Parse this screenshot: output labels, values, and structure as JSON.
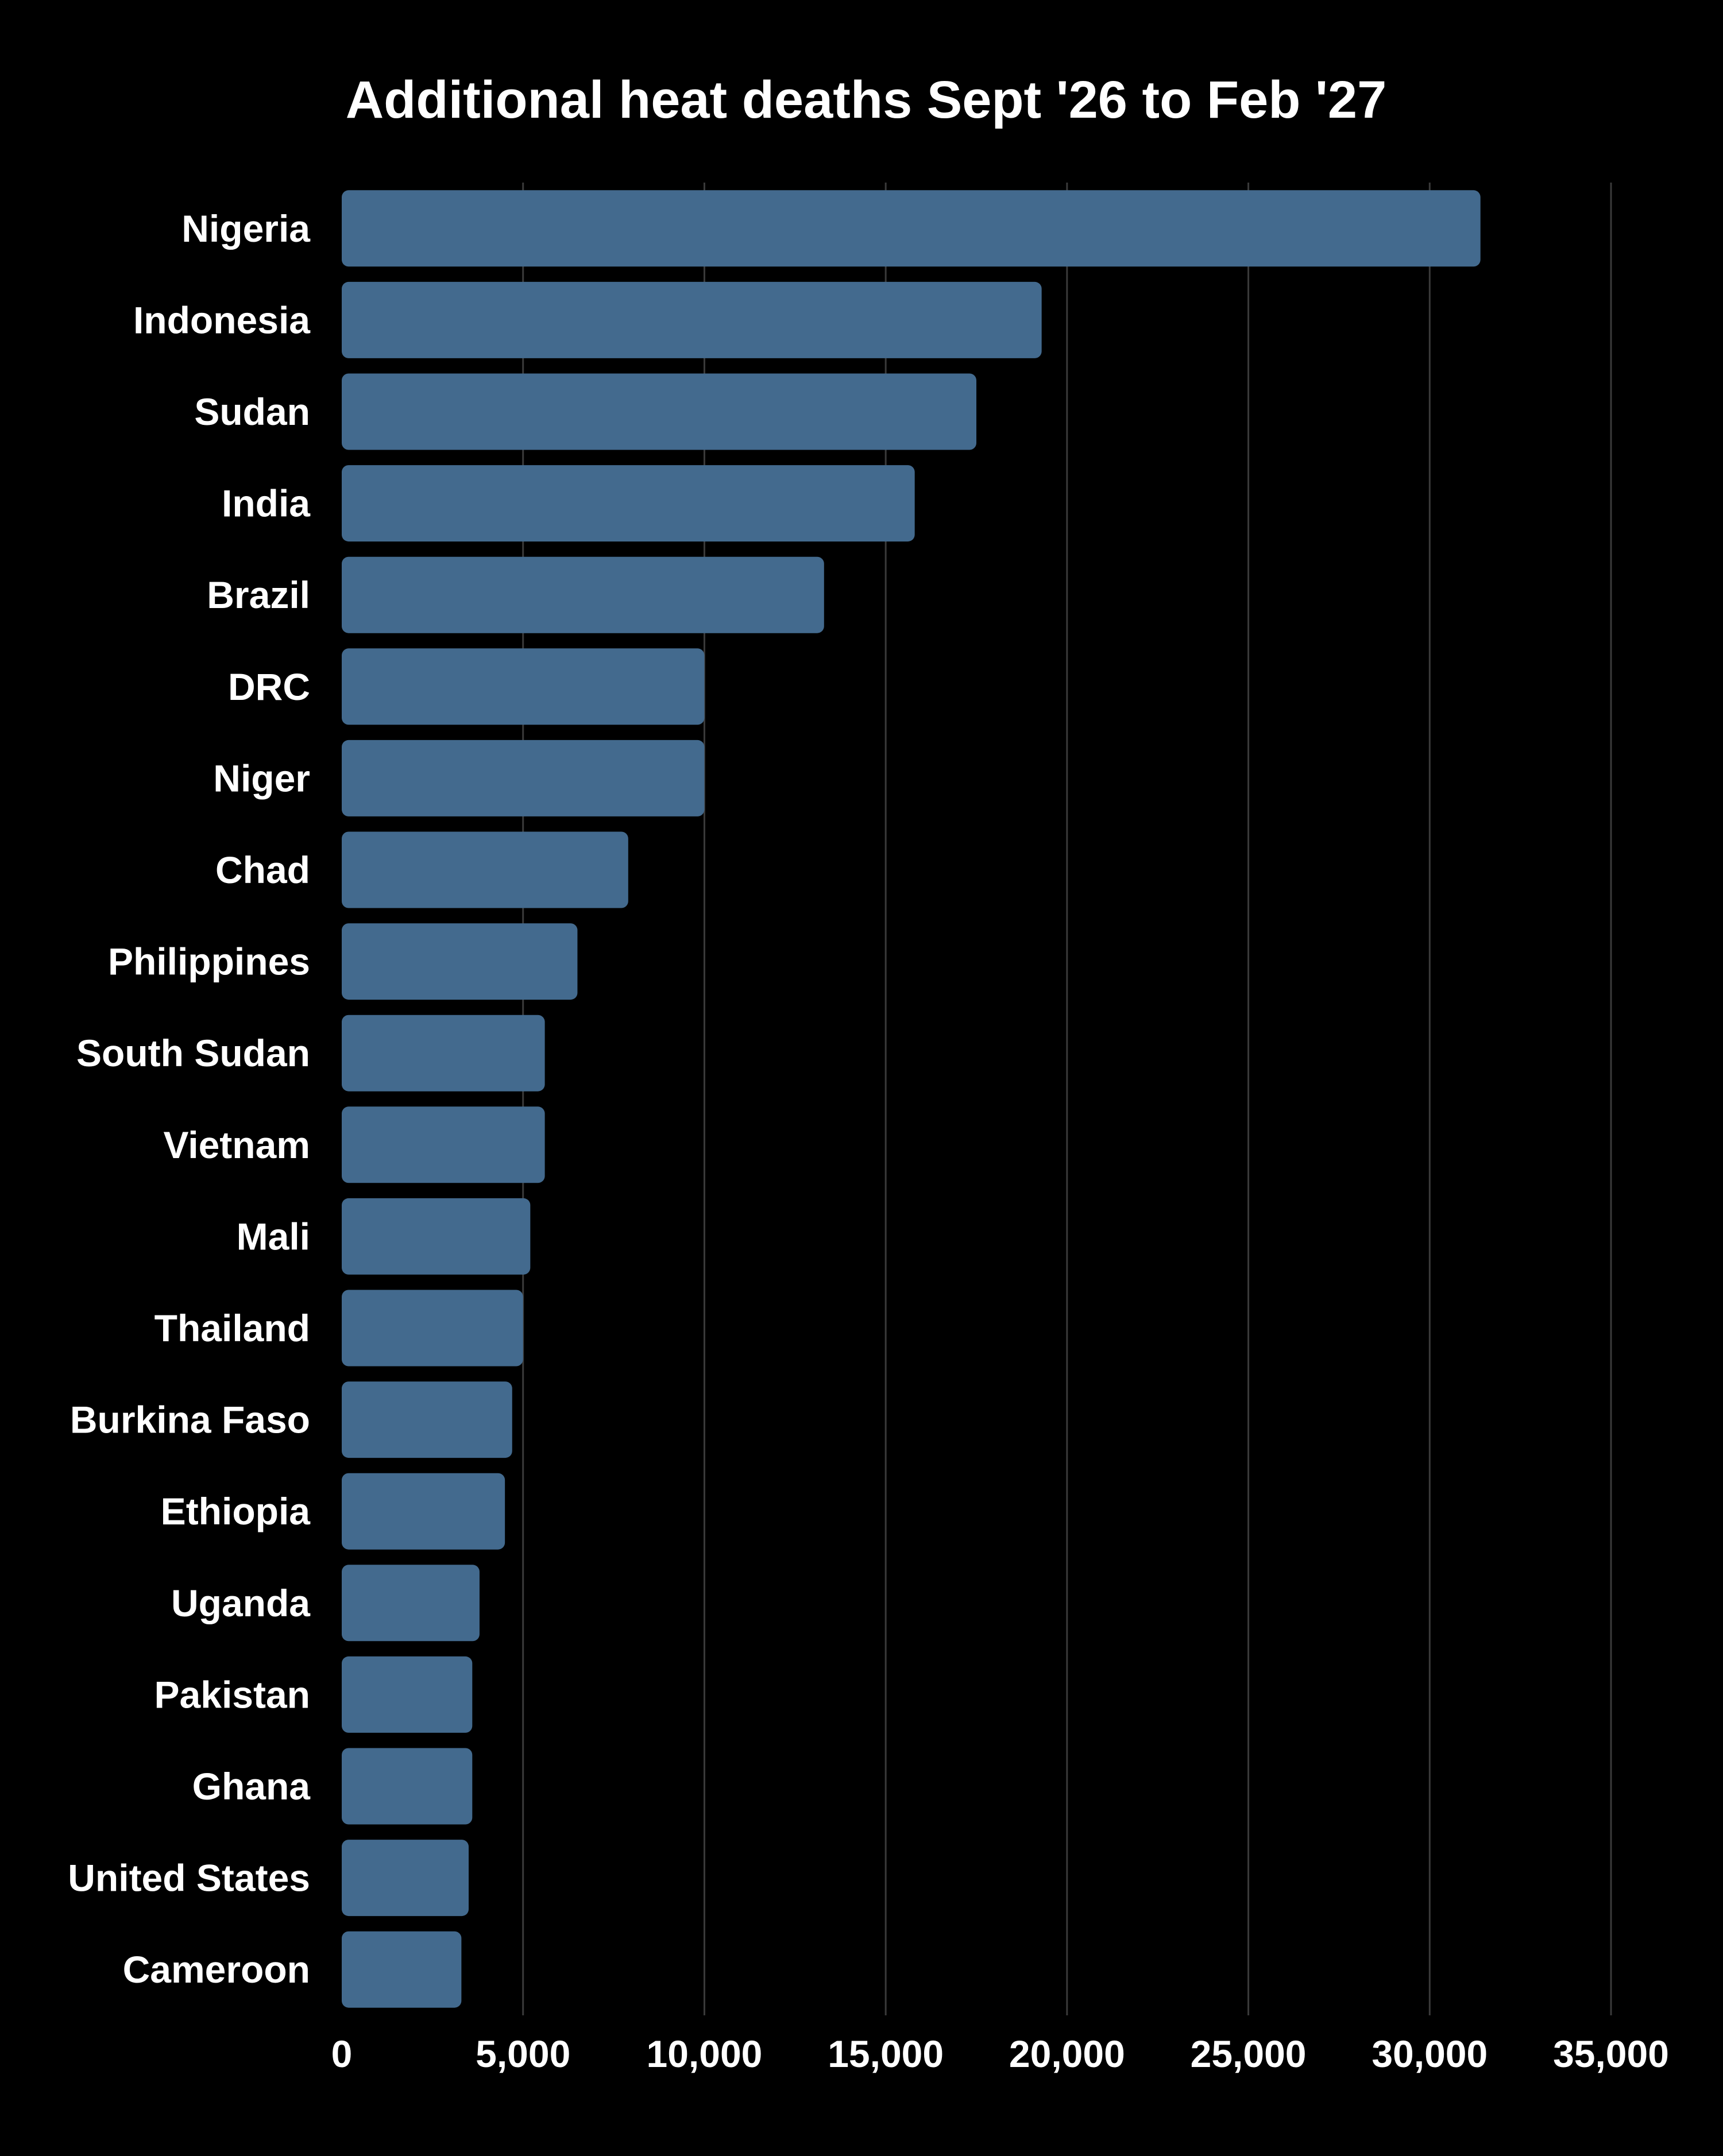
{
  "colors": {
    "background": "#000000",
    "bar": "#436a8e",
    "text": "#ffffff",
    "gridline": "#3a3a3a"
  },
  "chart_data": {
    "type": "bar",
    "orientation": "horizontal",
    "title": "Additional heat deaths Sept '26 to Feb '27",
    "xlabel": "",
    "ylabel": "",
    "xlim": [
      0,
      35000
    ],
    "x_ticks": [
      0,
      5000,
      10000,
      15000,
      20000,
      25000,
      30000,
      35000
    ],
    "x_tick_labels": [
      "0",
      "5,000",
      "10,000",
      "15,000",
      "20,000",
      "25,000",
      "30,000",
      "35,000"
    ],
    "grid": true,
    "legend": "none",
    "categories": [
      "Nigeria",
      "Indonesia",
      "Sudan",
      "India",
      "Brazil",
      "DRC",
      "Niger",
      "Chad",
      "Philippines",
      "South Sudan",
      "Vietnam",
      "Mali",
      "Thailand",
      "Burkina Faso",
      "Ethiopia",
      "Uganda",
      "Pakistan",
      "Ghana",
      "United States",
      "Cameroon"
    ],
    "values": [
      31400,
      19300,
      17500,
      15800,
      13300,
      10000,
      10000,
      7900,
      6500,
      5600,
      5600,
      5200,
      5000,
      4700,
      4500,
      3800,
      3600,
      3600,
      3500,
      3300
    ]
  }
}
